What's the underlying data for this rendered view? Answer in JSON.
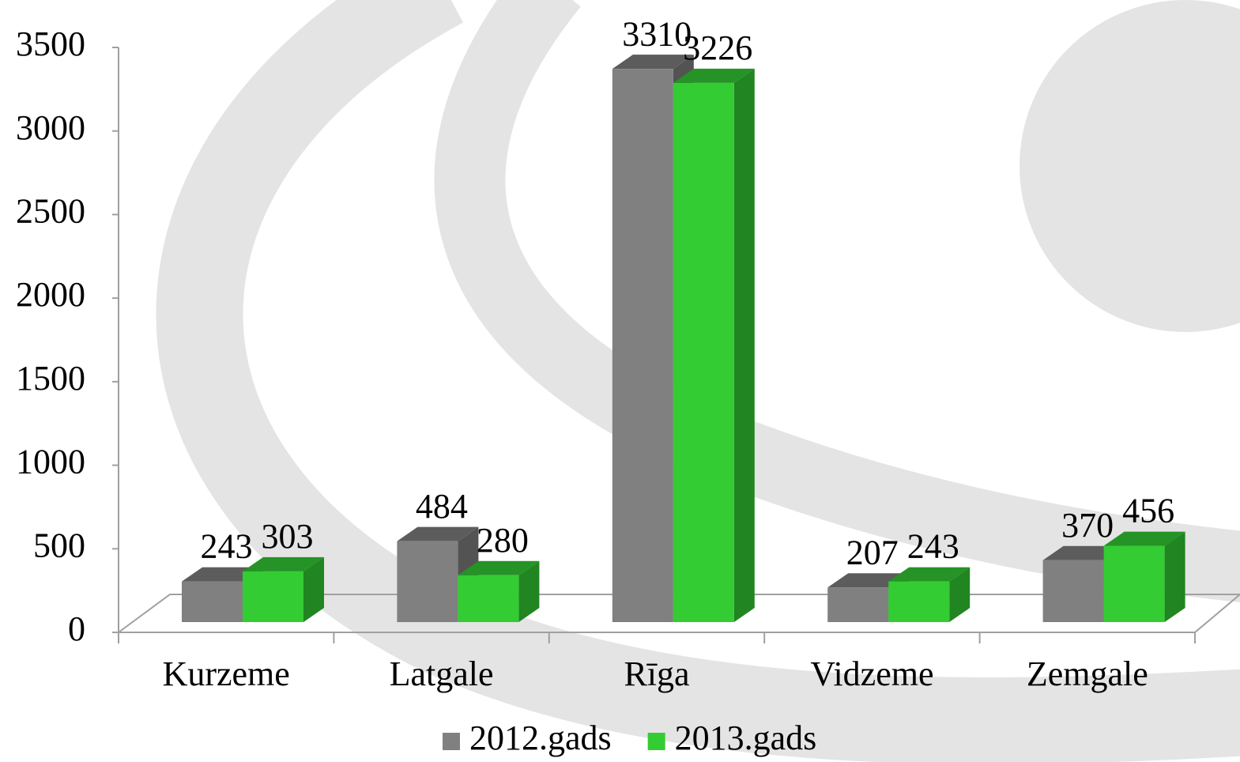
{
  "chart_data": {
    "type": "bar",
    "categories": [
      "Kurzeme",
      "Latgale",
      "Rīga",
      "Vidzeme",
      "Zemgale"
    ],
    "series": [
      {
        "name": "2012.gads",
        "color": "#808080",
        "values": [
          243,
          484,
          3310,
          207,
          370
        ]
      },
      {
        "name": "2013.gads",
        "color": "#33cc33",
        "values": [
          303,
          280,
          3226,
          243,
          456
        ]
      }
    ],
    "ylim": [
      0,
      3500
    ],
    "yticks": [
      0,
      500,
      1000,
      1500,
      2000,
      2500,
      3000,
      3500
    ]
  }
}
